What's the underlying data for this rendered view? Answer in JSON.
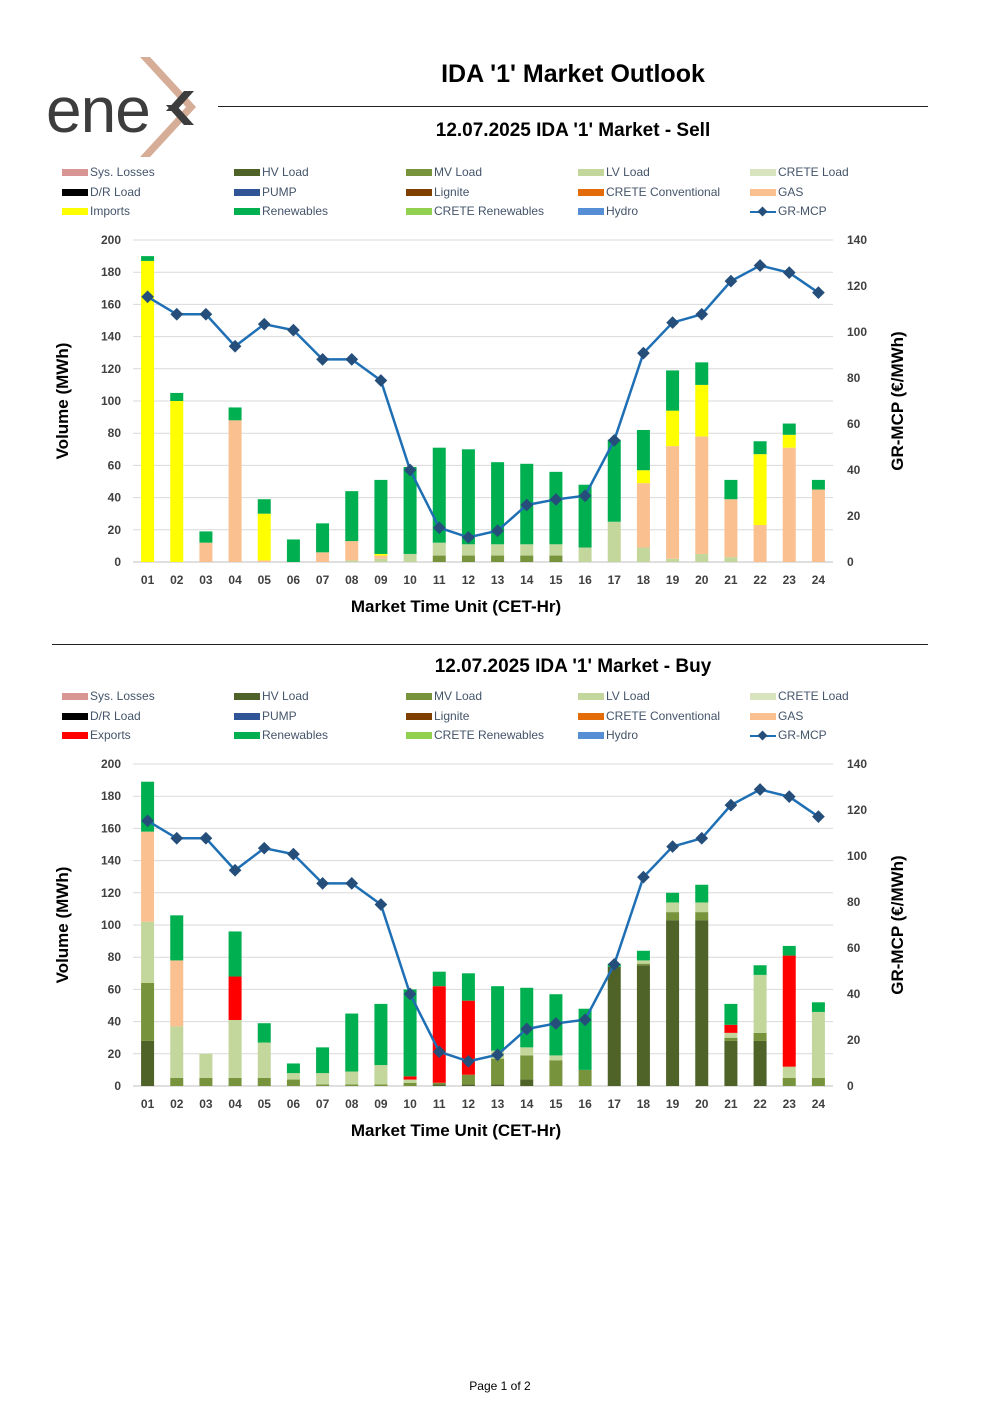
{
  "logo": {
    "text": "ene",
    "colors": {
      "text": "#3d3d3d",
      "x": "#d6ae98"
    }
  },
  "header": {
    "title": "IDA '1' Market Outlook"
  },
  "colors": {
    "sys_losses": "#d99594",
    "hv_load": "#4f6228",
    "mv_load": "#77933c",
    "lv_load": "#c3d69b",
    "crete_load": "#d7e4bd",
    "dr_load": "#000000",
    "pump": "#2f5597",
    "lignite": "#7f3f00",
    "crete_conv": "#e36c09",
    "gas": "#fac090",
    "imports": "#ffff00",
    "exports": "#ff0000",
    "renewables": "#00b050",
    "crete_renew": "#92d050",
    "hydro": "#558ed5",
    "mcp": "#1f6fb4",
    "mcp_marker": "#254f7a"
  },
  "chart_data": [
    {
      "type": "bar",
      "title": "12.07.2025  IDA '1' Market - Sell",
      "xlabel": "Market Time Unit (CET-Hr)",
      "ylabel": "Volume (MWh)",
      "y2label": "GR-MCP (€/MWh)",
      "ylim": [
        0,
        200
      ],
      "y2lim": [
        0,
        140
      ],
      "yticks": [
        "0",
        "20",
        "40",
        "60",
        "80",
        "100",
        "120",
        "140",
        "160",
        "180",
        "200"
      ],
      "y2ticks": [
        "0",
        "20",
        "40",
        "60",
        "80",
        "100",
        "120",
        "140"
      ],
      "categories": [
        "01",
        "02",
        "03",
        "04",
        "05",
        "06",
        "07",
        "08",
        "09",
        "10",
        "11",
        "12",
        "13",
        "14",
        "15",
        "16",
        "17",
        "18",
        "19",
        "20",
        "21",
        "22",
        "23",
        "24"
      ],
      "legend": [
        {
          "label": "Sys. Losses",
          "key": "sys_losses",
          "kind": "bar"
        },
        {
          "label": "HV Load",
          "key": "hv_load",
          "kind": "bar"
        },
        {
          "label": "MV Load",
          "key": "mv_load",
          "kind": "bar"
        },
        {
          "label": "LV Load",
          "key": "lv_load",
          "kind": "bar"
        },
        {
          "label": "CRETE Load",
          "key": "crete_load",
          "kind": "bar"
        },
        {
          "label": "D/R Load",
          "key": "dr_load",
          "kind": "bar"
        },
        {
          "label": "PUMP",
          "key": "pump",
          "kind": "bar"
        },
        {
          "label": "Lignite",
          "key": "lignite",
          "kind": "bar"
        },
        {
          "label": "CRETE Conventional",
          "key": "crete_conv",
          "kind": "bar"
        },
        {
          "label": "GAS",
          "key": "gas",
          "kind": "bar"
        },
        {
          "label": "Imports",
          "key": "imports",
          "kind": "bar"
        },
        {
          "label": "Renewables",
          "key": "renewables",
          "kind": "bar"
        },
        {
          "label": "CRETE Renewables",
          "key": "crete_renew",
          "kind": "bar"
        },
        {
          "label": "Hydro",
          "key": "hydro",
          "kind": "bar"
        },
        {
          "label": "GR-MCP",
          "key": "mcp",
          "kind": "line"
        }
      ],
      "series": [
        {
          "name": "MV Load",
          "key": "mv_load",
          "values": [
            0,
            0,
            0,
            0,
            0,
            0,
            0,
            0,
            0,
            0,
            4,
            4,
            4,
            4,
            4,
            0,
            0,
            0,
            0,
            0,
            0,
            0,
            0,
            0
          ]
        },
        {
          "name": "LV Load",
          "key": "lv_load",
          "values": [
            0,
            0,
            0,
            0,
            0,
            0,
            0,
            1,
            2,
            5,
            8,
            7,
            7,
            7,
            7,
            9,
            25,
            9,
            2,
            5,
            3,
            0,
            0,
            0
          ]
        },
        {
          "name": "GAS",
          "key": "gas",
          "values": [
            0,
            0,
            12,
            88,
            1,
            0,
            6,
            12,
            2,
            0,
            0,
            0,
            0,
            0,
            0,
            0,
            0,
            40,
            70,
            73,
            36,
            23,
            71,
            45
          ]
        },
        {
          "name": "Imports",
          "key": "imports",
          "values": [
            187,
            100,
            0,
            0,
            29,
            0,
            0,
            0,
            1,
            0,
            0,
            0,
            0,
            0,
            0,
            0,
            0,
            8,
            22,
            32,
            0,
            44,
            8,
            0
          ]
        },
        {
          "name": "Renewables",
          "key": "renewables",
          "values": [
            3,
            5,
            7,
            8,
            9,
            14,
            18,
            31,
            46,
            54,
            59,
            59,
            51,
            50,
            45,
            39,
            51,
            25,
            25,
            14,
            12,
            8,
            7,
            6
          ]
        }
      ],
      "mcp": [
        115.3,
        107.7,
        107.7,
        93.8,
        103.4,
        100.8,
        88.1,
        88.1,
        78.9,
        40.0,
        14.9,
        10.7,
        13.6,
        24.8,
        27.2,
        28.8,
        52.9,
        90.8,
        104.1,
        107.7,
        122.1,
        128.9,
        125.8,
        117.1
      ]
    },
    {
      "type": "bar",
      "title": "12.07.2025  IDA '1' Market - Buy",
      "xlabel": "Market Time Unit (CET-Hr)",
      "ylabel": "Volume (MWh)",
      "y2label": "GR-MCP (€/MWh)",
      "ylim": [
        0,
        200
      ],
      "y2lim": [
        0,
        140
      ],
      "yticks": [
        "0",
        "20",
        "40",
        "60",
        "80",
        "100",
        "120",
        "140",
        "160",
        "180",
        "200"
      ],
      "y2ticks": [
        "0",
        "20",
        "40",
        "60",
        "80",
        "100",
        "120",
        "140"
      ],
      "categories": [
        "01",
        "02",
        "03",
        "04",
        "05",
        "06",
        "07",
        "08",
        "09",
        "10",
        "11",
        "12",
        "13",
        "14",
        "15",
        "16",
        "17",
        "18",
        "19",
        "20",
        "21",
        "22",
        "23",
        "24"
      ],
      "legend": [
        {
          "label": "Sys. Losses",
          "key": "sys_losses",
          "kind": "bar"
        },
        {
          "label": "HV Load",
          "key": "hv_load",
          "kind": "bar"
        },
        {
          "label": "MV Load",
          "key": "mv_load",
          "kind": "bar"
        },
        {
          "label": "LV Load",
          "key": "lv_load",
          "kind": "bar"
        },
        {
          "label": "CRETE Load",
          "key": "crete_load",
          "kind": "bar"
        },
        {
          "label": "D/R Load",
          "key": "dr_load",
          "kind": "bar"
        },
        {
          "label": "PUMP",
          "key": "pump",
          "kind": "bar"
        },
        {
          "label": "Lignite",
          "key": "lignite",
          "kind": "bar"
        },
        {
          "label": "CRETE Conventional",
          "key": "crete_conv",
          "kind": "bar"
        },
        {
          "label": "GAS",
          "key": "gas",
          "kind": "bar"
        },
        {
          "label": "Exports",
          "key": "exports",
          "kind": "bar"
        },
        {
          "label": "Renewables",
          "key": "renewables",
          "kind": "bar"
        },
        {
          "label": "CRETE Renewables",
          "key": "crete_renew",
          "kind": "bar"
        },
        {
          "label": "Hydro",
          "key": "hydro",
          "kind": "bar"
        },
        {
          "label": "GR-MCP",
          "key": "mcp",
          "kind": "line"
        }
      ],
      "series": [
        {
          "name": "HV Load",
          "key": "hv_load",
          "values": [
            28,
            0,
            0,
            0,
            0,
            0,
            0,
            0,
            0,
            0,
            1,
            1,
            1,
            4,
            0,
            0,
            74,
            75,
            103,
            103,
            28,
            28,
            0,
            0
          ]
        },
        {
          "name": "MV Load",
          "key": "mv_load",
          "values": [
            36,
            5,
            5,
            5,
            5,
            4,
            1,
            1,
            1,
            2,
            1,
            6,
            16,
            15,
            16,
            10,
            0,
            1,
            5,
            5,
            2,
            5,
            5,
            5
          ]
        },
        {
          "name": "LV Load",
          "key": "lv_load",
          "values": [
            38,
            32,
            15,
            36,
            22,
            4,
            7,
            8,
            12,
            2,
            0,
            0,
            5,
            5,
            3,
            0,
            0,
            2,
            6,
            6,
            3,
            36,
            7,
            41
          ]
        },
        {
          "name": "GAS",
          "key": "gas",
          "values": [
            56,
            41,
            0,
            0,
            0,
            0,
            0,
            0,
            0,
            0,
            0,
            0,
            0,
            0,
            0,
            0,
            0,
            0,
            0,
            0,
            0,
            0,
            0,
            0
          ]
        },
        {
          "name": "Exports",
          "key": "exports",
          "values": [
            0,
            0,
            0,
            27,
            0,
            0,
            0,
            0,
            0,
            2,
            60,
            46,
            0,
            0,
            0,
            0,
            0,
            0,
            0,
            0,
            5,
            0,
            69,
            0
          ]
        },
        {
          "name": "Renewables",
          "key": "renewables",
          "values": [
            31,
            28,
            0,
            28,
            12,
            6,
            16,
            36,
            38,
            54,
            9,
            17,
            40,
            37,
            38,
            38,
            2,
            6,
            6,
            11,
            13,
            6,
            6,
            6
          ]
        }
      ],
      "mcp": [
        115.3,
        107.7,
        107.7,
        93.8,
        103.4,
        100.8,
        88.1,
        88.1,
        78.9,
        40.0,
        14.9,
        10.7,
        13.6,
        24.8,
        27.2,
        28.8,
        52.9,
        90.8,
        104.1,
        107.7,
        122.1,
        128.9,
        125.8,
        117.1
      ]
    }
  ],
  "footer": {
    "page": "Page 1 of 2"
  }
}
